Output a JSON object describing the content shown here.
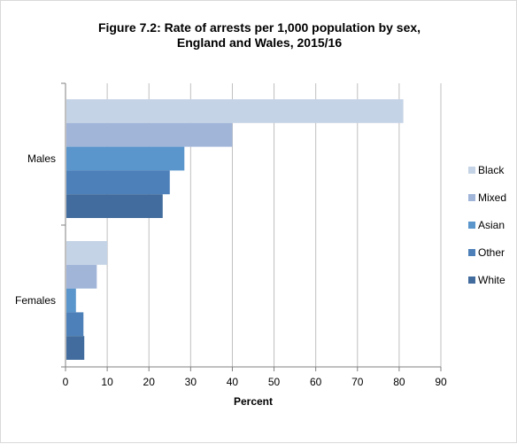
{
  "chart_data": {
    "type": "bar",
    "orientation": "horizontal",
    "title_line1": "Figure 7.2: Rate of arrests per 1,000 population by sex,",
    "title_line2": "England and Wales, 2015/16",
    "xlabel": "Percent",
    "ylabel": "",
    "xlim": [
      0,
      90
    ],
    "x_ticks": [
      0,
      10,
      20,
      30,
      40,
      50,
      60,
      70,
      80,
      90
    ],
    "grid": true,
    "legend_position": "right",
    "categories": [
      "Males",
      "Females"
    ],
    "series": [
      {
        "name": "Black",
        "color": "#c5d3e6",
        "values": [
          81,
          10
        ]
      },
      {
        "name": "Mixed",
        "color": "#a1b5d9",
        "values": [
          40,
          7.5
        ]
      },
      {
        "name": "Asian",
        "color": "#5a95cb",
        "values": [
          28.5,
          2.5
        ]
      },
      {
        "name": "Other",
        "color": "#4d80b8",
        "values": [
          25,
          4.3
        ]
      },
      {
        "name": "White",
        "color": "#426c9d",
        "values": [
          23.3,
          4.5
        ]
      }
    ]
  }
}
